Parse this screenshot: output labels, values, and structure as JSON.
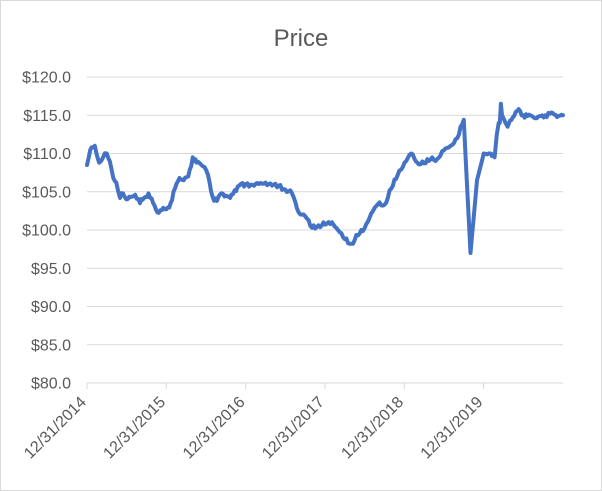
{
  "chart_data": {
    "type": "line",
    "title": "Price",
    "xlabel": "",
    "ylabel": "",
    "ylim": [
      80,
      120
    ],
    "xlim": [
      "12/31/2014",
      "12/31/2020"
    ],
    "y_ticks": [
      80,
      85,
      90,
      95,
      100,
      105,
      110,
      115,
      120
    ],
    "y_tick_labels": [
      "$80.0",
      "$85.0",
      "$90.0",
      "$95.0",
      "$100.0",
      "$105.0",
      "$110.0",
      "$115.0",
      "$120.0"
    ],
    "x_tick_labels": [
      "12/31/2014",
      "12/31/2015",
      "12/31/2016",
      "12/31/2017",
      "12/31/2018",
      "12/31/2019"
    ],
    "grid": "horizontal",
    "legend": "none",
    "line_color": "#4472c4",
    "series": [
      {
        "x": [
          "12/31/2014",
          "1/15/2015",
          "2/5/2015",
          "2/25/2015",
          "3/15/2015",
          "4/1/2015",
          "4/15/2015",
          "5/1/2015",
          "5/15/2015",
          "6/1/2015",
          "6/15/2015",
          "7/1/2015",
          "7/20/2015",
          "8/10/2015",
          "9/1/2015",
          "9/20/2015",
          "10/10/2015",
          "11/1/2015",
          "11/20/2015",
          "12/10/2015",
          "12/31/2015",
          "1/20/2016",
          "2/10/2016",
          "3/1/2016",
          "3/20/2016",
          "4/10/2016",
          "5/1/2016",
          "5/20/2016",
          "6/10/2016",
          "6/25/2016",
          "7/10/2016",
          "8/1/2016",
          "8/20/2016",
          "9/10/2016",
          "10/1/2016",
          "10/20/2016",
          "11/10/2016",
          "12/1/2016",
          "12/31/2016",
          "1/31/2017",
          "3/1/2017",
          "4/1/2017",
          "5/1/2017",
          "6/1/2017",
          "7/1/2017",
          "8/1/2017",
          "9/1/2017",
          "10/1/2017",
          "11/1/2017",
          "12/1/2017",
          "1/1/2018",
          "2/1/2018",
          "3/1/2018",
          "4/1/2018",
          "5/1/2018",
          "6/1/2018",
          "7/1/2018",
          "8/1/2018",
          "9/1/2018",
          "10/1/2018",
          "11/1/2018",
          "12/1/2018",
          "1/1/2019",
          "2/1/2019",
          "3/1/2019",
          "4/1/2019",
          "5/1/2019",
          "6/1/2019",
          "7/1/2019",
          "8/1/2019",
          "9/1/2019",
          "10/1/2019",
          "11/1/2019",
          "12/1/2019",
          "1/1/2020",
          "2/1/2020",
          "2/20/2020",
          "3/1/2020",
          "3/10/2020",
          "3/15/2020",
          "3/20/2020",
          "3/25/2020",
          "4/1/2020",
          "4/10/2020",
          "4/20/2020",
          "5/1/2020",
          "5/20/2020",
          "6/10/2020",
          "7/1/2020",
          "7/20/2020",
          "8/10/2020",
          "9/1/2020",
          "9/20/2020",
          "10/10/2020",
          "11/1/2020",
          "11/20/2020",
          "12/10/2020",
          "12/31/2020"
        ],
        "values": [
          108.5,
          110.5,
          111.0,
          108.8,
          109.5,
          110.0,
          109.0,
          106.8,
          106.2,
          104.2,
          104.8,
          104.0,
          104.3,
          104.6,
          103.5,
          104.2,
          104.8,
          103.5,
          102.3,
          102.6,
          102.7,
          103.5,
          105.5,
          106.8,
          106.5,
          107.0,
          109.5,
          108.8,
          108.5,
          108.2,
          107.2,
          104.3,
          103.8,
          104.8,
          104.5,
          104.2,
          105.2,
          105.8,
          106.0,
          105.9,
          106.0,
          106.2,
          105.8,
          105.8,
          105.3,
          104.8,
          102.3,
          101.8,
          100.3,
          100.6,
          100.7,
          101.0,
          100.0,
          98.8,
          98.2,
          99.3,
          100.2,
          102.2,
          103.4,
          103.3,
          105.4,
          107.2,
          108.8,
          110.0,
          108.8,
          108.7,
          109.2,
          109.3,
          110.4,
          111.0,
          112.0,
          114.4,
          97.0,
          106.5,
          110.0,
          110.0,
          109.5,
          112.5,
          114.0,
          114.0,
          116.5,
          115.0,
          114.6,
          114.0,
          113.5,
          114.3,
          114.9,
          115.8,
          115.0,
          114.9,
          114.9,
          114.6,
          114.9,
          115.0,
          115.2,
          115.1,
          114.9,
          115.0
        ],
        "dense_note": ""
      }
    ]
  }
}
